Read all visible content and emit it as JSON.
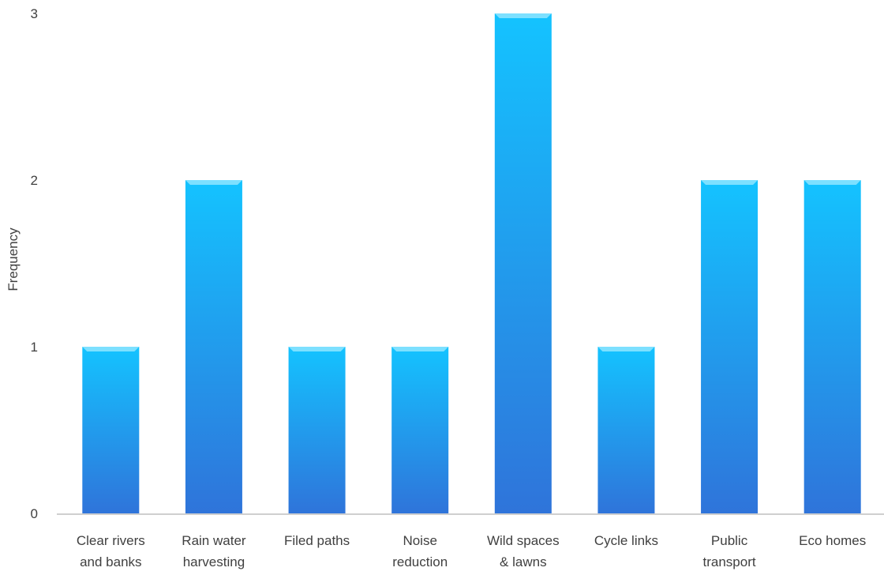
{
  "chart_data": {
    "type": "bar",
    "title": "",
    "xlabel": "",
    "ylabel": "Frequency",
    "categories": [
      [
        "Clear rivers",
        "and banks"
      ],
      [
        "Rain water",
        "harvesting"
      ],
      [
        "Filed paths"
      ],
      [
        "Noise",
        "reduction"
      ],
      [
        "Wild spaces",
        "& lawns"
      ],
      [
        "Cycle links"
      ],
      [
        "Public",
        "transport"
      ],
      [
        "Eco homes"
      ]
    ],
    "values": [
      1,
      2,
      1,
      1,
      3,
      1,
      2,
      2
    ],
    "ylim": [
      0,
      3
    ],
    "yticks": [
      "0",
      "1",
      "2",
      "3"
    ],
    "grid": false,
    "legend": "none",
    "colors": {
      "bar_top": "#14C3FF",
      "bar_bottom": "#2F74DA",
      "bar_cap": "#7DE0FF",
      "axis": "#BFBFBF",
      "text": "#404040"
    }
  }
}
